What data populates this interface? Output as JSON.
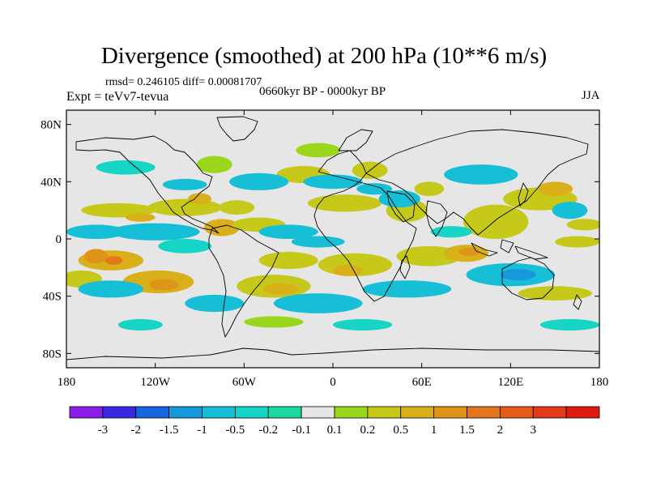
{
  "title": "Divergence (smoothed) at 200 hPa (10**6 m/s)",
  "stats_text": "rmsd= 0.246105 diff= 0.00081707",
  "experiment_text": "Expt = teVv7-tevua",
  "period_text": "0660kyr BP - 0000kyr BP",
  "season": "JJA",
  "map": {
    "projection": "cylindrical equidistant",
    "lon_range": [
      -180,
      180
    ],
    "lat_range": [
      -90,
      90
    ],
    "background_color": "#e6e6e6",
    "coastline_color": "#000000"
  },
  "x_tick_labels": [
    {
      "lon": -180,
      "label": "180"
    },
    {
      "lon": -120,
      "label": "120W"
    },
    {
      "lon": -60,
      "label": "60W"
    },
    {
      "lon": 0,
      "label": "0"
    },
    {
      "lon": 60,
      "label": "60E"
    },
    {
      "lon": 120,
      "label": "120E"
    },
    {
      "lon": 180,
      "label": "180"
    }
  ],
  "y_tick_labels": [
    {
      "lat": 80,
      "label": "80N"
    },
    {
      "lat": 40,
      "label": "40N"
    },
    {
      "lat": 0,
      "label": "0"
    },
    {
      "lat": -40,
      "label": "40S"
    },
    {
      "lat": -80,
      "label": "80S"
    }
  ],
  "colorbar": {
    "colors": [
      "#8a1ee6",
      "#3a2adf",
      "#1766de",
      "#1599db",
      "#17bfd6",
      "#16d4c6",
      "#1ad9a0",
      "#e6e6e6",
      "#9ad61c",
      "#c6c81a",
      "#d9b01a",
      "#de9416",
      "#e3761a",
      "#e65a1a",
      "#e33a1a",
      "#de1a12"
    ],
    "labels": [
      "-3",
      "-2",
      "-1.5",
      "-1",
      "-0.5",
      "-0.2",
      "-0.1",
      "0.1",
      "0.2",
      "0.5",
      "1",
      "1.5",
      "2",
      "3"
    ]
  },
  "field_blobs": [
    {
      "lon": -150,
      "lat": -15,
      "rx": 22,
      "ry": 7,
      "level": 1.0
    },
    {
      "lon": -160,
      "lat": -12,
      "rx": 8,
      "ry": 5,
      "level": 1.5
    },
    {
      "lon": -148,
      "lat": -15,
      "rx": 6,
      "ry": 3,
      "level": 2.0
    },
    {
      "lon": -118,
      "lat": -30,
      "rx": 24,
      "ry": 8,
      "level": 1.0
    },
    {
      "lon": -114,
      "lat": -32,
      "rx": 10,
      "ry": 4,
      "level": 1.5
    },
    {
      "lon": -170,
      "lat": -28,
      "rx": 14,
      "ry": 6,
      "level": 0.5
    },
    {
      "lon": -40,
      "lat": -33,
      "rx": 25,
      "ry": 8,
      "level": 0.5
    },
    {
      "lon": -35,
      "lat": -35,
      "rx": 12,
      "ry": 4,
      "level": 1.0
    },
    {
      "lon": -30,
      "lat": -15,
      "rx": 20,
      "ry": 6,
      "level": 0.5
    },
    {
      "lon": 15,
      "lat": -18,
      "rx": 25,
      "ry": 8,
      "level": 0.5
    },
    {
      "lon": 10,
      "lat": -22,
      "rx": 10,
      "ry": 4,
      "level": 1.0
    },
    {
      "lon": 65,
      "lat": -12,
      "rx": 22,
      "ry": 7,
      "level": 0.5
    },
    {
      "lon": 90,
      "lat": -10,
      "rx": 15,
      "ry": 6,
      "level": 1.0
    },
    {
      "lon": 92,
      "lat": -9,
      "rx": 7,
      "ry": 3,
      "level": 1.5
    },
    {
      "lon": 110,
      "lat": 12,
      "rx": 22,
      "ry": 12,
      "level": 0.5
    },
    {
      "lon": 140,
      "lat": 28,
      "rx": 25,
      "ry": 8,
      "level": 0.5
    },
    {
      "lon": 150,
      "lat": 35,
      "rx": 12,
      "ry": 5,
      "level": 1.0
    },
    {
      "lon": 165,
      "lat": -2,
      "rx": 15,
      "ry": 4,
      "level": 0.5
    },
    {
      "lon": 170,
      "lat": 10,
      "rx": 12,
      "ry": 4,
      "level": 0.5
    },
    {
      "lon": -100,
      "lat": 22,
      "rx": 25,
      "ry": 6,
      "level": 0.5
    },
    {
      "lon": -90,
      "lat": 28,
      "rx": 8,
      "ry": 4,
      "level": 1.0
    },
    {
      "lon": -65,
      "lat": 22,
      "rx": 12,
      "ry": 5,
      "level": 0.5
    },
    {
      "lon": -75,
      "lat": 8,
      "rx": 12,
      "ry": 6,
      "level": 1.0
    },
    {
      "lon": -50,
      "lat": 10,
      "rx": 18,
      "ry": 5,
      "level": 0.5
    },
    {
      "lon": -145,
      "lat": 20,
      "rx": 25,
      "ry": 5,
      "level": 0.5
    },
    {
      "lon": -130,
      "lat": 15,
      "rx": 10,
      "ry": 3,
      "level": 1.0
    },
    {
      "lon": 8,
      "lat": 25,
      "rx": 25,
      "ry": 6,
      "level": 0.5
    },
    {
      "lon": -20,
      "lat": 45,
      "rx": 18,
      "ry": 6,
      "level": 0.5
    },
    {
      "lon": 25,
      "lat": 48,
      "rx": 12,
      "ry": 6,
      "level": 0.5
    },
    {
      "lon": 50,
      "lat": 20,
      "rx": 14,
      "ry": 8,
      "level": 0.5
    },
    {
      "lon": 65,
      "lat": 35,
      "rx": 10,
      "ry": 5,
      "level": 0.5
    },
    {
      "lon": -80,
      "lat": 52,
      "rx": 12,
      "ry": 6,
      "level": 0.2
    },
    {
      "lon": -10,
      "lat": 62,
      "rx": 15,
      "ry": 5,
      "level": 0.2
    },
    {
      "lon": -40,
      "lat": -58,
      "rx": 20,
      "ry": 4,
      "level": 0.2
    },
    {
      "lon": 150,
      "lat": -38,
      "rx": 25,
      "ry": 5,
      "level": 0.5
    },
    {
      "lon": -10,
      "lat": -2,
      "rx": 18,
      "ry": 4,
      "level": -0.5
    },
    {
      "lon": -30,
      "lat": 5,
      "rx": 20,
      "ry": 5,
      "level": -0.5
    },
    {
      "lon": -120,
      "lat": 5,
      "rx": 30,
      "ry": 6,
      "level": -0.5
    },
    {
      "lon": -100,
      "lat": -5,
      "rx": 18,
      "ry": 5,
      "level": -0.2
    },
    {
      "lon": -160,
      "lat": 5,
      "rx": 20,
      "ry": 5,
      "level": -0.5
    },
    {
      "lon": -150,
      "lat": -35,
      "rx": 22,
      "ry": 6,
      "level": -0.5
    },
    {
      "lon": -80,
      "lat": -45,
      "rx": 20,
      "ry": 6,
      "level": -0.5
    },
    {
      "lon": -10,
      "lat": -45,
      "rx": 30,
      "ry": 7,
      "level": -0.5
    },
    {
      "lon": 50,
      "lat": -35,
      "rx": 30,
      "ry": 6,
      "level": -0.5
    },
    {
      "lon": 120,
      "lat": -25,
      "rx": 30,
      "ry": 8,
      "level": -0.5
    },
    {
      "lon": 125,
      "lat": -25,
      "rx": 12,
      "ry": 4,
      "level": -1.0
    },
    {
      "lon": 45,
      "lat": 28,
      "rx": 14,
      "ry": 6,
      "level": -0.5
    },
    {
      "lon": 0,
      "lat": 40,
      "rx": 20,
      "ry": 5,
      "level": -0.5
    },
    {
      "lon": 28,
      "lat": 35,
      "rx": 12,
      "ry": 4,
      "level": -0.5
    },
    {
      "lon": -50,
      "lat": 40,
      "rx": 20,
      "ry": 6,
      "level": -0.5
    },
    {
      "lon": -100,
      "lat": 38,
      "rx": 15,
      "ry": 4,
      "level": -0.5
    },
    {
      "lon": 100,
      "lat": 45,
      "rx": 25,
      "ry": 7,
      "level": -0.5
    },
    {
      "lon": 160,
      "lat": 20,
      "rx": 12,
      "ry": 6,
      "level": -0.5
    },
    {
      "lon": 80,
      "lat": 5,
      "rx": 14,
      "ry": 4,
      "level": -0.2
    },
    {
      "lon": 20,
      "lat": -60,
      "rx": 20,
      "ry": 4,
      "level": -0.2
    },
    {
      "lon": 160,
      "lat": -60,
      "rx": 20,
      "ry": 4,
      "level": -0.2
    },
    {
      "lon": -130,
      "lat": -60,
      "rx": 15,
      "ry": 4,
      "level": -0.2
    },
    {
      "lon": -140,
      "lat": 50,
      "rx": 20,
      "ry": 5,
      "level": -0.2
    }
  ]
}
